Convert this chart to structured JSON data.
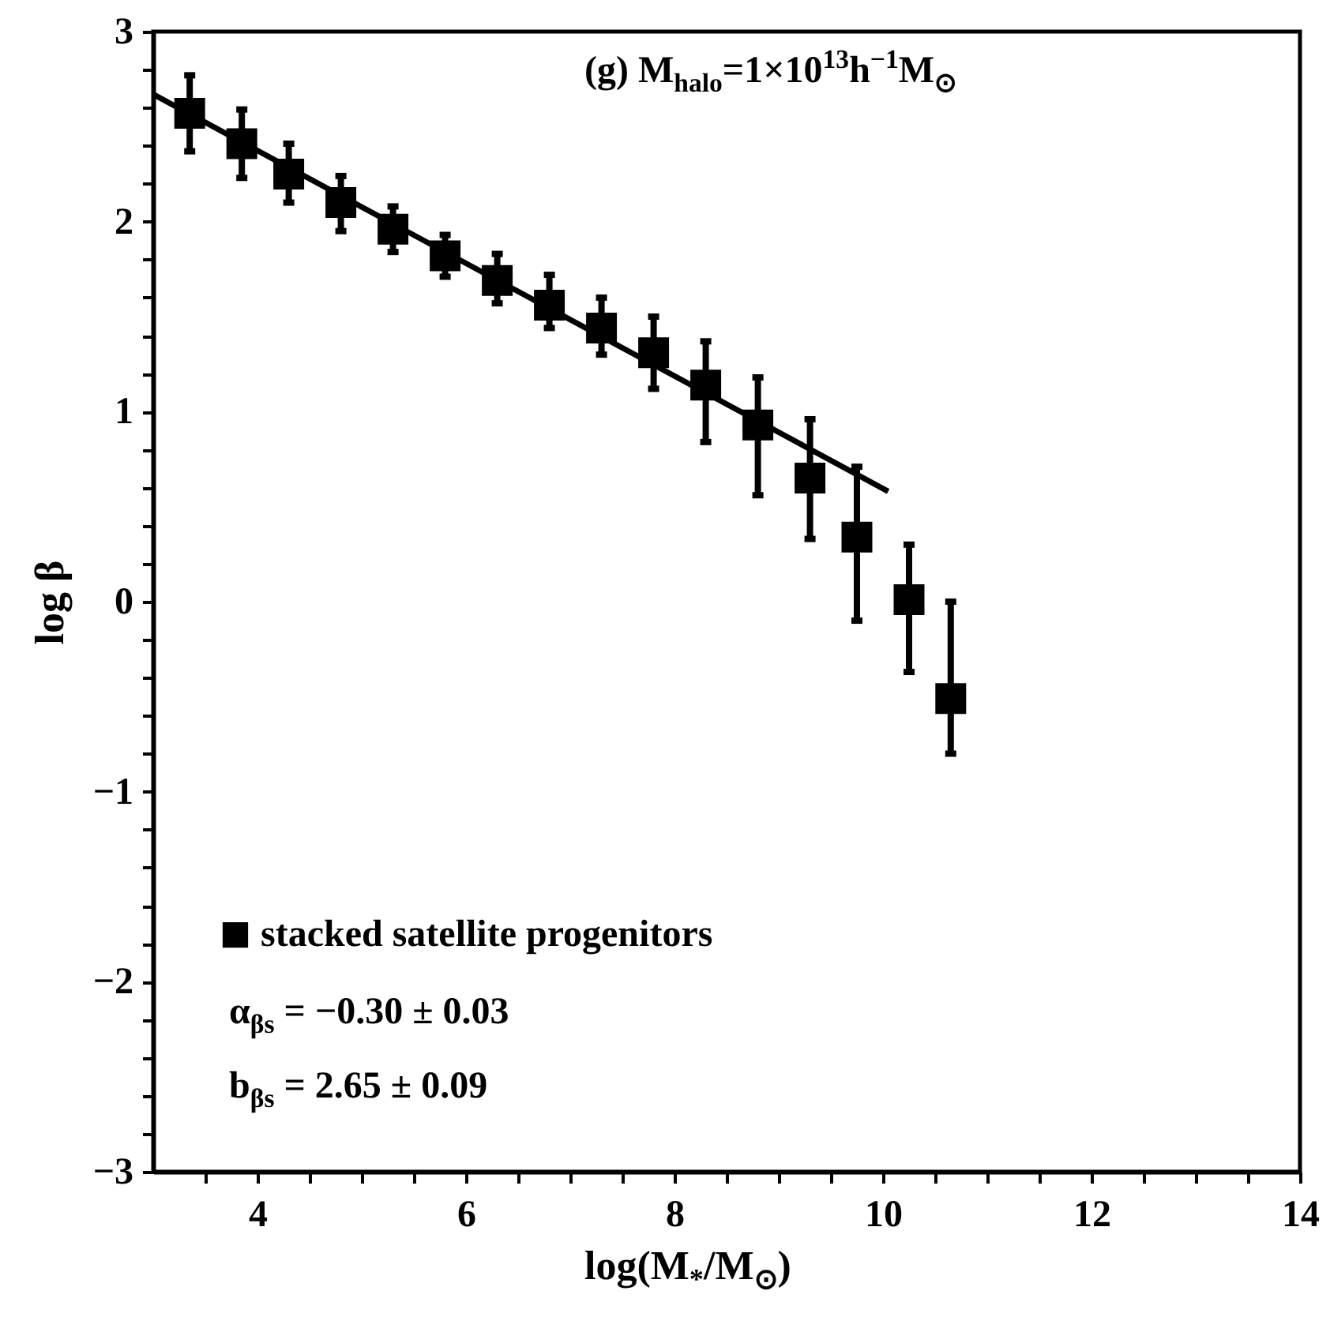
{
  "chart_data": {
    "type": "scatter",
    "xlabel": "log(M$_{*}$/M$_{⊙}$)",
    "ylabel": "log β",
    "annotations": [
      "(g)   M$_{halo}$=1×10$^{13}$h$^{−1}$M$_{⊙}$",
      "α$_{βs}$ = −0.30 ± 0.03",
      "b$_{βs}$ = 2.65 ± 0.09"
    ],
    "xlim": [
      3,
      14
    ],
    "ylim": [
      -3,
      3
    ],
    "xticks": [
      {
        "value": 3.5,
        "label": null
      },
      4,
      {
        "value": 4.5,
        "label": null
      },
      {
        "value": 5,
        "label": null
      },
      {
        "value": 5.5,
        "label": null
      },
      6,
      {
        "value": 6.5,
        "label": null
      },
      {
        "value": 7,
        "label": null
      },
      {
        "value": 7.5,
        "label": null
      },
      8,
      {
        "value": 8.5,
        "label": null
      },
      {
        "value": 9,
        "label": null
      },
      {
        "value": 9.5,
        "label": null
      },
      10,
      {
        "value": 10.5,
        "label": null
      },
      {
        "value": 11,
        "label": null
      },
      {
        "value": 11.5,
        "label": null
      },
      12,
      {
        "value": 12.5,
        "label": null
      },
      {
        "value": 13,
        "label": null
      },
      {
        "value": 13.5,
        "label": null
      },
      14
    ],
    "yticks": [
      {
        "value": -3,
        "label": "−3"
      },
      {
        "value": -2.8,
        "label": null
      },
      {
        "value": -2.6,
        "label": null
      },
      {
        "value": -2.4,
        "label": null
      },
      {
        "value": -2.2,
        "label": null
      },
      {
        "value": -2,
        "label": "−2"
      },
      {
        "value": -1.8,
        "label": null
      },
      {
        "value": -1.6,
        "label": null
      },
      {
        "value": -1.4,
        "label": null
      },
      {
        "value": -1.2,
        "label": null
      },
      {
        "value": -1,
        "label": "−1"
      },
      {
        "value": -0.8,
        "label": null
      },
      {
        "value": -0.6,
        "label": null
      },
      {
        "value": -0.4,
        "label": null
      },
      {
        "value": -0.2,
        "label": null
      },
      0,
      {
        "value": 0.2,
        "label": null
      },
      {
        "value": 0.4,
        "label": null
      },
      {
        "value": 0.6,
        "label": null
      },
      {
        "value": 0.8,
        "label": null
      },
      1,
      {
        "value": 1.2,
        "label": null
      },
      {
        "value": 1.4,
        "label": null
      },
      {
        "value": 1.6,
        "label": null
      },
      {
        "value": 1.8,
        "label": null
      },
      2,
      {
        "value": 2.2,
        "label": null
      },
      {
        "value": 2.4,
        "label": null
      },
      {
        "value": 2.6,
        "label": null
      },
      {
        "value": 2.8,
        "label": null
      },
      3
    ],
    "grid": false,
    "legend": "bottom left",
    "series": [
      {
        "name": "stacked satellite progenitors",
        "type": "scatter",
        "marker": "square",
        "color": "#000000",
        "x": [
          3.35,
          3.85,
          4.3,
          4.8,
          5.3,
          5.8,
          6.3,
          6.8,
          7.3,
          7.8,
          8.3,
          8.8,
          9.3,
          9.75,
          10.25,
          10.65
        ],
        "values": [
          2.57,
          2.41,
          2.25,
          2.1,
          1.96,
          1.82,
          1.69,
          1.56,
          1.44,
          1.31,
          1.14,
          0.93,
          0.65,
          0.34,
          0.01,
          -0.51
        ],
        "errors": [
          [
            2.37,
            2.77
          ],
          [
            2.23,
            2.59
          ],
          [
            2.1,
            2.41
          ],
          [
            1.95,
            2.24
          ],
          [
            1.84,
            2.08
          ],
          [
            1.71,
            1.93
          ],
          [
            1.57,
            1.83
          ],
          [
            1.44,
            1.72
          ],
          [
            1.3,
            1.6
          ],
          [
            1.12,
            1.5
          ],
          [
            0.84,
            1.37
          ],
          [
            0.56,
            1.18
          ],
          [
            0.33,
            0.96
          ],
          [
            -0.1,
            0.71
          ],
          [
            -0.37,
            0.3
          ],
          [
            -0.8,
            0.0
          ]
        ]
      },
      {
        "type": "line",
        "color": "#000000",
        "x": [
          3.0,
          10.05
        ],
        "values": [
          2.67,
          0.58
        ]
      }
    ]
  }
}
